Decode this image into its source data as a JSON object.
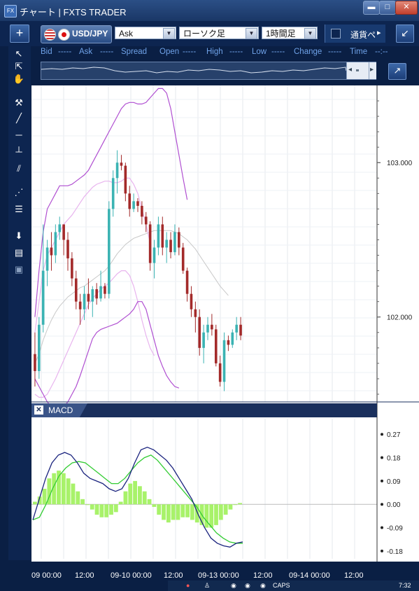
{
  "window": {
    "title": "チャート | FXTS TRADER",
    "app_icon": "FX",
    "min_label": "▬",
    "max_label": "□",
    "close_label": "✕"
  },
  "toolbar": {
    "add_label": "+",
    "symbol": "USD/JPY",
    "price_type": "Ask",
    "chart_type": "ローソク足",
    "timeframe": "1時間足",
    "currency_label": "通貨ペ",
    "scroll_label": "▸",
    "expand_label": "↙"
  },
  "quote": {
    "bid_label": "Bid",
    "bid": "-----",
    "ask_label": "Ask",
    "ask": "-----",
    "spread_label": "Spread",
    "open_label": "Open",
    "open": "-----",
    "high_label": "High",
    "high": "-----",
    "low_label": "Low",
    "low": "-----",
    "change_label": "Change",
    "change": "-----",
    "time_label": "Time",
    "time": "--:--"
  },
  "macd_panel": {
    "label": "MACD",
    "close_label": "✕"
  },
  "price_axis": {
    "labels": [
      "103.000",
      "102.000"
    ]
  },
  "macd_axis": {
    "labels": [
      "0.27",
      "0.18",
      "0.09",
      "0.00",
      "-0.09",
      "-0.18"
    ]
  },
  "x_axis": {
    "labels": [
      "09 00:00",
      "12:00",
      "09-10 00:00",
      "12:00",
      "09-13 00:00",
      "12:00",
      "09-14 00:00",
      "12:00"
    ]
  },
  "taskbar": {
    "caps": "CAPS",
    "clock": "7:32"
  },
  "colors": {
    "up": "#3bb3b3",
    "down": "#a32a2a",
    "band_outer": "#b04fd1",
    "band_inner": "#e8b4ee",
    "ma": "#c8c8c8",
    "macd_line": "#1a237e",
    "signal_line": "#33cc33",
    "histogram": "#a8f26a"
  },
  "chart_data": [
    {
      "type": "candlestick",
      "title": "USD/JPY",
      "y_ticks": [
        103.0,
        102.0
      ],
      "ylim": [
        101.45,
        103.5
      ],
      "grid": true,
      "candles": [
        {
          "o": 101.76,
          "h": 101.9,
          "l": 101.55,
          "c": 101.65
        },
        {
          "o": 101.65,
          "h": 102.0,
          "l": 101.6,
          "c": 101.95
        },
        {
          "o": 101.95,
          "h": 102.6,
          "l": 101.9,
          "c": 102.3
        },
        {
          "o": 102.3,
          "h": 102.5,
          "l": 102.2,
          "c": 102.45
        },
        {
          "o": 102.45,
          "h": 102.55,
          "l": 102.3,
          "c": 102.4
        },
        {
          "o": 102.4,
          "h": 102.6,
          "l": 102.35,
          "c": 102.55
        },
        {
          "o": 102.55,
          "h": 102.65,
          "l": 102.5,
          "c": 102.6
        },
        {
          "o": 102.6,
          "h": 102.6,
          "l": 102.4,
          "c": 102.5
        },
        {
          "o": 102.5,
          "h": 102.55,
          "l": 102.3,
          "c": 102.38
        },
        {
          "o": 102.38,
          "h": 102.42,
          "l": 102.2,
          "c": 102.25
        },
        {
          "o": 102.25,
          "h": 102.3,
          "l": 102.05,
          "c": 102.1
        },
        {
          "o": 102.1,
          "h": 102.15,
          "l": 101.95,
          "c": 102.05
        },
        {
          "o": 102.05,
          "h": 102.2,
          "l": 101.98,
          "c": 102.15
        },
        {
          "o": 102.15,
          "h": 102.25,
          "l": 102.05,
          "c": 102.1
        },
        {
          "o": 102.1,
          "h": 102.2,
          "l": 102.0,
          "c": 102.18
        },
        {
          "o": 102.18,
          "h": 102.22,
          "l": 102.08,
          "c": 102.12
        },
        {
          "o": 102.12,
          "h": 102.3,
          "l": 102.1,
          "c": 102.2
        },
        {
          "o": 102.2,
          "h": 102.22,
          "l": 102.12,
          "c": 102.15
        },
        {
          "o": 102.15,
          "h": 102.75,
          "l": 102.12,
          "c": 102.7
        },
        {
          "o": 102.7,
          "h": 102.95,
          "l": 102.65,
          "c": 102.9
        },
        {
          "o": 102.9,
          "h": 103.08,
          "l": 102.8,
          "c": 103.0
        },
        {
          "o": 103.0,
          "h": 103.05,
          "l": 102.95,
          "c": 102.98
        },
        {
          "o": 102.98,
          "h": 103.0,
          "l": 102.75,
          "c": 102.8
        },
        {
          "o": 102.8,
          "h": 102.85,
          "l": 102.65,
          "c": 102.7
        },
        {
          "o": 102.7,
          "h": 102.8,
          "l": 102.68,
          "c": 102.75
        },
        {
          "o": 102.75,
          "h": 102.77,
          "l": 102.68,
          "c": 102.72
        },
        {
          "o": 102.72,
          "h": 102.75,
          "l": 102.6,
          "c": 102.65
        },
        {
          "o": 102.65,
          "h": 102.68,
          "l": 102.55,
          "c": 102.6
        },
        {
          "o": 102.6,
          "h": 102.62,
          "l": 102.3,
          "c": 102.35
        },
        {
          "o": 102.35,
          "h": 102.5,
          "l": 102.25,
          "c": 102.45
        },
        {
          "o": 102.45,
          "h": 102.65,
          "l": 102.4,
          "c": 102.6
        },
        {
          "o": 102.6,
          "h": 102.65,
          "l": 102.4,
          "c": 102.45
        },
        {
          "o": 102.45,
          "h": 102.55,
          "l": 102.35,
          "c": 102.5
        },
        {
          "o": 102.5,
          "h": 102.55,
          "l": 102.38,
          "c": 102.42
        },
        {
          "o": 102.42,
          "h": 102.6,
          "l": 102.4,
          "c": 102.55
        },
        {
          "o": 102.55,
          "h": 102.58,
          "l": 102.4,
          "c": 102.45
        },
        {
          "o": 102.45,
          "h": 102.48,
          "l": 102.28,
          "c": 102.3
        },
        {
          "o": 102.3,
          "h": 102.32,
          "l": 102.1,
          "c": 102.15
        },
        {
          "o": 102.15,
          "h": 102.2,
          "l": 102.0,
          "c": 102.05
        },
        {
          "o": 102.05,
          "h": 102.1,
          "l": 101.9,
          "c": 102.0
        },
        {
          "o": 102.0,
          "h": 102.05,
          "l": 101.75,
          "c": 101.8
        },
        {
          "o": 101.8,
          "h": 101.95,
          "l": 101.7,
          "c": 101.9
        },
        {
          "o": 101.9,
          "h": 102.0,
          "l": 101.85,
          "c": 101.95
        },
        {
          "o": 101.95,
          "h": 102.02,
          "l": 101.88,
          "c": 101.92
        },
        {
          "o": 101.92,
          "h": 101.95,
          "l": 101.68,
          "c": 101.7
        },
        {
          "o": 101.7,
          "h": 101.75,
          "l": 101.55,
          "c": 101.58
        },
        {
          "o": 101.58,
          "h": 101.9,
          "l": 101.52,
          "c": 101.85
        },
        {
          "o": 101.85,
          "h": 101.88,
          "l": 101.78,
          "c": 101.82
        },
        {
          "o": 101.82,
          "h": 101.92,
          "l": 101.8,
          "c": 101.9
        },
        {
          "o": 101.9,
          "h": 102.0,
          "l": 101.85,
          "c": 101.95
        },
        {
          "o": 101.95,
          "h": 102.0,
          "l": 101.85,
          "c": 101.88
        }
      ],
      "ma": [
        101.7,
        101.76,
        101.85,
        101.92,
        101.98,
        102.03,
        102.07,
        102.1,
        102.13,
        102.15,
        102.17,
        102.19,
        102.2,
        102.22,
        102.24,
        102.26,
        102.28,
        102.3,
        102.33,
        102.37,
        102.41,
        102.44,
        102.47,
        102.49,
        102.51,
        102.52,
        102.53,
        102.54,
        102.55,
        102.56,
        102.56,
        102.56,
        102.56,
        102.56,
        102.55,
        102.54,
        102.52,
        102.5,
        102.47,
        102.44,
        102.4,
        102.36,
        102.32,
        102.28,
        102.24,
        102.2,
        102.17,
        102.14
      ],
      "band_outer_upper": [
        102.0,
        102.3,
        102.55,
        102.7,
        102.75,
        102.8,
        102.85,
        102.85,
        102.85,
        102.86,
        102.88,
        102.9,
        102.92,
        102.95,
        103.0,
        103.05,
        103.1,
        103.15,
        103.2,
        103.25,
        103.3,
        103.35,
        103.38,
        103.39,
        103.39,
        103.38,
        103.38,
        103.39,
        103.42,
        103.45,
        103.48,
        103.48,
        103.45,
        103.35,
        103.2,
        103.05,
        102.9,
        102.76
      ],
      "band_outer_lower": [
        101.6,
        101.55,
        101.5,
        101.45,
        101.42,
        101.42,
        101.42,
        101.42,
        101.45,
        101.5,
        101.55,
        101.62,
        101.7,
        101.78,
        101.86,
        101.9,
        101.92,
        101.93,
        101.94,
        101.95,
        101.96,
        101.98,
        102.0,
        102.02,
        102.05,
        102.1,
        102.1,
        102.05,
        101.95,
        101.85,
        101.75,
        101.68,
        101.62,
        101.58,
        101.55,
        101.54
      ],
      "band_inner_upper": [
        101.9,
        102.1,
        102.3,
        102.4,
        102.45,
        102.5,
        102.55,
        102.6,
        102.63,
        102.66,
        102.7,
        102.74,
        102.78,
        102.81,
        102.84,
        102.86,
        102.87,
        102.88,
        102.88,
        102.87,
        102.87,
        102.88,
        102.9,
        102.9,
        102.86,
        102.8,
        102.7,
        102.6,
        102.48
      ],
      "band_inner_lower": [
        101.5,
        101.48,
        101.48,
        101.5,
        101.55,
        101.6,
        101.66,
        101.72,
        101.78,
        101.84,
        101.9,
        101.96,
        102.02,
        102.08,
        102.12,
        102.15,
        102.18,
        102.2,
        102.22,
        102.25,
        102.28,
        102.3,
        102.3,
        102.27,
        102.2,
        102.1,
        101.98,
        101.88,
        101.8,
        101.75
      ]
    },
    {
      "type": "macd",
      "title": "MACD",
      "y_ticks": [
        0.27,
        0.18,
        0.09,
        0.0,
        -0.09,
        -0.18
      ],
      "ylim": [
        -0.21,
        0.33
      ],
      "histogram": [
        0.01,
        0.03,
        0.06,
        0.1,
        0.12,
        0.13,
        0.12,
        0.1,
        0.08,
        0.05,
        0.02,
        0.0,
        -0.02,
        -0.04,
        -0.05,
        -0.05,
        -0.04,
        -0.03,
        0.01,
        0.05,
        0.08,
        0.09,
        0.07,
        0.05,
        0.02,
        -0.01,
        -0.04,
        -0.06,
        -0.07,
        -0.06,
        -0.06,
        -0.05,
        -0.05,
        -0.06,
        -0.07,
        -0.08,
        -0.09,
        -0.09,
        -0.08,
        -0.06,
        -0.04,
        -0.02,
        0.0,
        0.005
      ],
      "macd_line": [
        -0.06,
        0.02,
        0.1,
        0.16,
        0.19,
        0.2,
        0.19,
        0.16,
        0.12,
        0.1,
        0.09,
        0.08,
        0.06,
        0.05,
        0.06,
        0.1,
        0.16,
        0.21,
        0.22,
        0.21,
        0.19,
        0.17,
        0.14,
        0.1,
        0.06,
        0.02,
        -0.04,
        -0.09,
        -0.13,
        -0.15,
        -0.16,
        -0.165,
        -0.15,
        -0.145
      ],
      "signal_line": [
        -0.06,
        -0.05,
        0.0,
        0.06,
        0.11,
        0.14,
        0.16,
        0.165,
        0.16,
        0.14,
        0.12,
        0.1,
        0.08,
        0.08,
        0.1,
        0.13,
        0.16,
        0.18,
        0.19,
        0.17,
        0.14,
        0.11,
        0.08,
        0.05,
        0.02,
        -0.01,
        -0.05,
        -0.08,
        -0.11,
        -0.13,
        -0.145,
        -0.15,
        -0.15
      ]
    }
  ]
}
